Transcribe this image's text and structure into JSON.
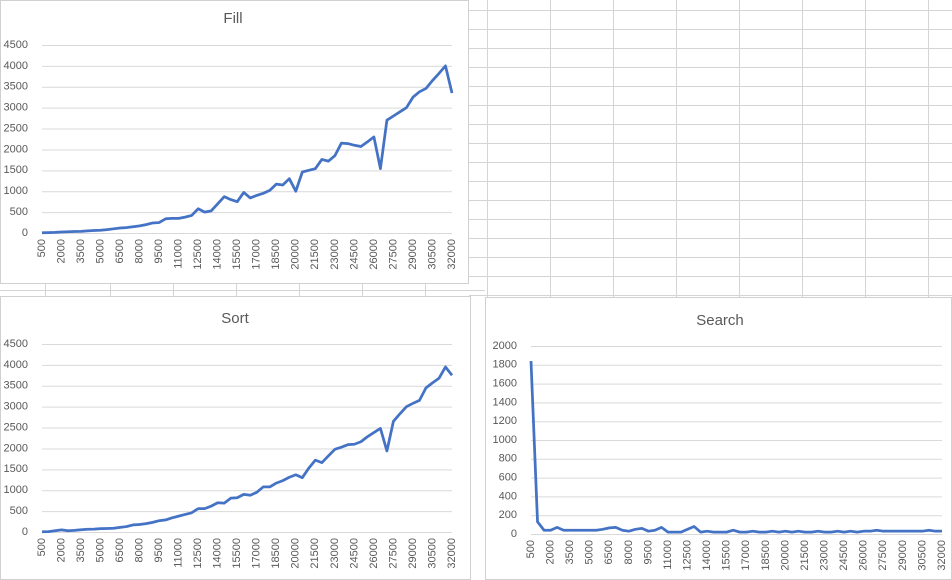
{
  "chart_data": [
    {
      "type": "line",
      "title": "Fill",
      "categories": [
        500,
        null,
        null,
        2000,
        null,
        null,
        3500,
        null,
        null,
        5000,
        null,
        null,
        6500,
        null,
        null,
        8000,
        null,
        null,
        9500,
        null,
        null,
        11000,
        null,
        null,
        12500,
        null,
        null,
        14000,
        null,
        null,
        15500,
        null,
        null,
        17000,
        null,
        null,
        18500,
        null,
        null,
        20000,
        null,
        null,
        21500,
        null,
        null,
        23000,
        null,
        null,
        24500,
        null,
        null,
        26000,
        null,
        null,
        27500,
        null,
        null,
        29000,
        null,
        null,
        30500,
        null,
        null,
        32000
      ],
      "series": [
        {
          "name": "Fill",
          "color": "#4472c4",
          "values": [
            5,
            10,
            15,
            25,
            30,
            35,
            40,
            50,
            60,
            65,
            80,
            100,
            120,
            130,
            150,
            170,
            200,
            240,
            250,
            340,
            350,
            350,
            380,
            420,
            580,
            500,
            530,
            700,
            870,
            800,
            750,
            970,
            840,
            900,
            950,
            1020,
            1170,
            1150,
            1300,
            1000,
            1460,
            1500,
            1540,
            1760,
            1720,
            1850,
            2150,
            2140,
            2100,
            2070,
            2180,
            2300,
            1540,
            2700,
            2800,
            2900,
            3000,
            3250,
            3380,
            3460,
            3650,
            3820,
            4000,
            3350
          ]
        }
      ],
      "ylim": [
        0,
        4500
      ],
      "yticks": [
        0,
        500,
        1000,
        1500,
        2000,
        2500,
        3000,
        3500,
        4000,
        4500
      ],
      "grid": true
    },
    {
      "type": "line",
      "title": "Sort",
      "categories": [
        500,
        null,
        null,
        2000,
        null,
        null,
        3500,
        null,
        null,
        5000,
        null,
        null,
        6500,
        null,
        null,
        8000,
        null,
        null,
        9500,
        null,
        null,
        11000,
        null,
        null,
        12500,
        null,
        null,
        14000,
        null,
        null,
        15500,
        null,
        null,
        17000,
        null,
        null,
        18500,
        null,
        null,
        20000,
        null,
        null,
        21500,
        null,
        null,
        23000,
        null,
        null,
        24500,
        null,
        null,
        26000,
        null,
        null,
        27500,
        null,
        null,
        29000,
        null,
        null,
        30500,
        null,
        null,
        32000
      ],
      "series": [
        {
          "name": "Sort",
          "color": "#4472c4",
          "values": [
            5,
            10,
            30,
            50,
            30,
            40,
            55,
            65,
            70,
            80,
            85,
            90,
            110,
            130,
            170,
            180,
            200,
            230,
            270,
            290,
            340,
            380,
            420,
            460,
            560,
            560,
            620,
            700,
            690,
            810,
            820,
            900,
            880,
            950,
            1080,
            1080,
            1170,
            1230,
            1310,
            1370,
            1300,
            1530,
            1720,
            1660,
            1820,
            1980,
            2030,
            2090,
            2100,
            2160,
            2280,
            2380,
            2480,
            1940,
            2650,
            2830,
            3000,
            3080,
            3150,
            3450,
            3570,
            3680,
            3950,
            3750
          ]
        }
      ],
      "ylim": [
        0,
        4500
      ],
      "yticks": [
        0,
        500,
        1000,
        1500,
        2000,
        2500,
        3000,
        3500,
        4000,
        4500
      ],
      "grid": true
    },
    {
      "type": "line",
      "title": "Search",
      "categories": [
        500,
        null,
        null,
        2000,
        null,
        null,
        3500,
        null,
        null,
        5000,
        null,
        null,
        6500,
        null,
        null,
        8000,
        null,
        null,
        9500,
        null,
        null,
        11000,
        null,
        null,
        12500,
        null,
        null,
        14000,
        null,
        null,
        15500,
        null,
        null,
        17000,
        null,
        null,
        18500,
        null,
        null,
        20000,
        null,
        null,
        21500,
        null,
        null,
        23000,
        null,
        null,
        24500,
        null,
        null,
        26000,
        null,
        null,
        27500,
        null,
        null,
        29000,
        null,
        null,
        30500,
        null,
        null,
        32000
      ],
      "series": [
        {
          "name": "Search",
          "color": "#4472c4",
          "values": [
            1840,
            130,
            40,
            40,
            70,
            40,
            40,
            40,
            40,
            40,
            40,
            50,
            65,
            70,
            40,
            30,
            50,
            60,
            30,
            40,
            70,
            20,
            20,
            20,
            50,
            80,
            20,
            30,
            20,
            20,
            20,
            40,
            20,
            20,
            30,
            20,
            20,
            30,
            20,
            30,
            20,
            30,
            20,
            20,
            30,
            20,
            20,
            30,
            20,
            30,
            20,
            30,
            30,
            40,
            30,
            30,
            30,
            30,
            30,
            30,
            30,
            40,
            30,
            30
          ]
        }
      ],
      "ylim": [
        0,
        2000
      ],
      "yticks": [
        0,
        200,
        400,
        600,
        800,
        1000,
        1200,
        1400,
        1600,
        1800,
        2000
      ],
      "grid": true
    }
  ]
}
